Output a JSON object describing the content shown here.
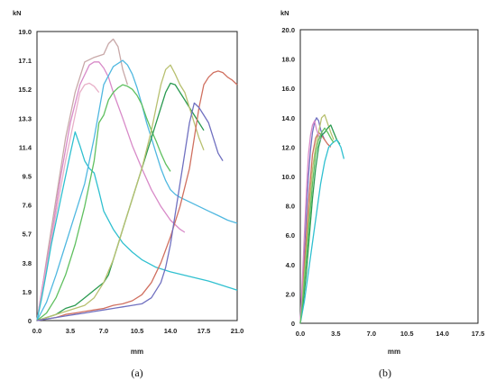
{
  "chart_data": [
    {
      "type": "line",
      "caption": "(a)",
      "xlabel": "mm",
      "ylabel": "kN",
      "xlim": [
        0,
        21.0
      ],
      "ylim": [
        0,
        19.0
      ],
      "xticks": [
        "0.0",
        "3.5",
        "7.0",
        "10.5",
        "14.0",
        "17.5",
        "21.0"
      ],
      "yticks": [
        "0",
        "1.9",
        "3.8",
        "5.7",
        "7.6",
        "9.5",
        "11.4",
        "13.3",
        "15.2",
        "17.1",
        "19.0"
      ],
      "grid": false,
      "series": [
        {
          "color": "#c8a8a8",
          "x": [
            0,
            0.4,
            1.0,
            2.0,
            3.0,
            4.0,
            5.0,
            6.0,
            7.0,
            7.5,
            8.0,
            8.5,
            9.0,
            9.5
          ],
          "y": [
            0,
            1.5,
            4.0,
            8.0,
            12.0,
            15.0,
            17.0,
            17.3,
            17.5,
            18.2,
            18.5,
            18.0,
            16.5,
            15.5
          ]
        },
        {
          "color": "#d88ac8",
          "x": [
            0,
            0.5,
            1.5,
            2.5,
            3.5,
            4.5,
            5.5,
            6.0,
            6.5,
            7.0,
            7.5,
            8.0,
            9.0,
            10.0,
            11.0,
            12.0,
            13.0,
            14.0,
            15.0,
            15.5
          ],
          "y": [
            0,
            2.0,
            5.5,
            9.5,
            13.0,
            15.5,
            16.8,
            17.0,
            17.0,
            16.6,
            16.0,
            15.0,
            13.3,
            11.5,
            10.0,
            8.6,
            7.5,
            6.6,
            6.0,
            5.8
          ]
        },
        {
          "color": "#e8b0c8",
          "x": [
            0,
            1.0,
            2.0,
            3.0,
            4.0,
            4.5,
            5.0,
            5.5,
            6.0,
            6.5
          ],
          "y": [
            0,
            3.5,
            7.0,
            10.5,
            13.5,
            15.0,
            15.5,
            15.6,
            15.4,
            15.0
          ]
        },
        {
          "color": "#30c0d0",
          "x": [
            0,
            0.5,
            1.0,
            1.5,
            2.0,
            2.5,
            3.0,
            3.5,
            4.0,
            4.5,
            5.0,
            5.5,
            6.0,
            6.5,
            7.0,
            8.0,
            9.0,
            10.0,
            11.0,
            12.5,
            14.0,
            16.0,
            18.0,
            19.5,
            21.0
          ],
          "y": [
            0,
            1.5,
            3.2,
            5.0,
            6.5,
            8.0,
            9.5,
            11.0,
            12.4,
            11.5,
            10.5,
            10.0,
            9.7,
            8.5,
            7.2,
            6.0,
            5.1,
            4.5,
            4.0,
            3.5,
            3.2,
            2.9,
            2.6,
            2.3,
            2.0
          ]
        },
        {
          "color": "#50b8e0",
          "x": [
            0,
            1.0,
            2.0,
            3.0,
            4.0,
            5.0,
            6.0,
            7.0,
            8.0,
            9.0,
            9.5,
            10.0,
            10.5,
            11.0,
            11.5,
            12.0,
            12.5,
            13.0,
            13.5,
            14.0,
            14.5,
            15.0,
            16.0,
            17.0,
            18.0,
            19.0,
            20.0,
            21.0
          ],
          "y": [
            0,
            1.2,
            3.0,
            5.0,
            7.0,
            9.0,
            12.0,
            15.5,
            16.7,
            17.1,
            16.8,
            16.2,
            15.3,
            14.2,
            13.0,
            12.0,
            11.0,
            10.0,
            9.2,
            8.6,
            8.3,
            8.1,
            7.8,
            7.5,
            7.2,
            6.9,
            6.6,
            6.4
          ]
        },
        {
          "color": "#60c060",
          "x": [
            0,
            1.0,
            2.0,
            3.0,
            4.0,
            5.0,
            6.0,
            6.5,
            7.0,
            7.5,
            8.0,
            8.5,
            9.0,
            9.5,
            10.0,
            10.5,
            11.0,
            11.5,
            12.0,
            12.5,
            13.0,
            13.5,
            14.0
          ],
          "y": [
            0,
            0.5,
            1.5,
            3.0,
            5.0,
            7.5,
            10.5,
            13.0,
            13.5,
            14.5,
            15.0,
            15.3,
            15.5,
            15.4,
            15.2,
            14.8,
            14.2,
            13.3,
            12.5,
            11.8,
            11.0,
            10.3,
            9.8
          ]
        },
        {
          "color": "#2a9a50",
          "x": [
            0,
            1.0,
            2.0,
            3.0,
            4.0,
            5.0,
            6.0,
            7.0,
            7.5,
            8.0,
            8.5,
            9.0,
            9.5,
            10.0,
            11.0,
            12.0,
            13.0,
            13.5,
            14.0,
            14.5,
            15.0,
            15.5,
            16.0,
            16.5,
            17.0,
            17.5
          ],
          "y": [
            0,
            0.2,
            0.4,
            0.8,
            1.0,
            1.5,
            2.0,
            2.5,
            3.0,
            4.0,
            5.0,
            6.0,
            7.0,
            8.0,
            10.0,
            12.0,
            14.0,
            15.0,
            15.6,
            15.5,
            15.0,
            14.5,
            14.0,
            13.5,
            13.0,
            12.5
          ]
        },
        {
          "color": "#b8c070",
          "x": [
            0,
            1.0,
            2.0,
            3.0,
            4.0,
            5.0,
            6.0,
            7.0,
            8.0,
            9.0,
            10.0,
            11.0,
            12.0,
            12.5,
            13.0,
            13.5,
            14.0,
            14.5,
            15.0,
            15.5,
            16.0,
            16.5,
            17.0,
            17.5
          ],
          "y": [
            0,
            0.2,
            0.4,
            0.6,
            0.8,
            1.0,
            1.5,
            2.5,
            4.0,
            6.0,
            8.0,
            10.0,
            12.5,
            14.0,
            15.5,
            16.5,
            16.8,
            16.2,
            15.5,
            15.0,
            14.0,
            13.0,
            12.0,
            11.2
          ]
        },
        {
          "color": "#d07060",
          "x": [
            0,
            1.0,
            2.0,
            3.0,
            4.0,
            5.0,
            6.0,
            7.0,
            8.0,
            9.0,
            10.0,
            11.0,
            12.0,
            13.0,
            14.0,
            15.0,
            16.0,
            16.5,
            17.0,
            17.5,
            18.0,
            18.5,
            19.0,
            19.5,
            20.0,
            20.5,
            21.0
          ],
          "y": [
            0,
            0.1,
            0.2,
            0.4,
            0.5,
            0.6,
            0.7,
            0.8,
            1.0,
            1.1,
            1.3,
            1.7,
            2.5,
            3.8,
            5.5,
            7.5,
            10.0,
            12.0,
            14.0,
            15.5,
            16.0,
            16.3,
            16.4,
            16.3,
            16.0,
            15.8,
            15.5
          ]
        },
        {
          "color": "#7070c0",
          "x": [
            0,
            1.0,
            2.0,
            3.0,
            4.0,
            5.0,
            6.0,
            7.0,
            8.0,
            9.0,
            10.0,
            11.0,
            12.0,
            13.0,
            13.5,
            14.0,
            14.5,
            15.0,
            15.5,
            16.0,
            16.5,
            17.0,
            17.5,
            18.0,
            18.5,
            19.0,
            19.5
          ],
          "y": [
            0,
            0.1,
            0.2,
            0.3,
            0.4,
            0.5,
            0.6,
            0.7,
            0.8,
            0.9,
            1.0,
            1.1,
            1.5,
            2.5,
            3.5,
            5.0,
            7.0,
            9.0,
            11.0,
            13.0,
            14.3,
            14.0,
            13.5,
            13.0,
            12.0,
            11.0,
            10.5
          ]
        }
      ]
    },
    {
      "type": "line",
      "caption": "(b)",
      "xlabel": "mm",
      "ylabel": "kN",
      "xlim": [
        0,
        17.5
      ],
      "ylim": [
        0,
        20.0
      ],
      "xticks": [
        "0.0",
        "3.5",
        "7.0",
        "10.5",
        "14.0",
        "17.5"
      ],
      "yticks": [
        "0",
        "2.0",
        "4.0",
        "6.0",
        "8.0",
        "10.0",
        "12.0",
        "14.0",
        "16.0",
        "18.0",
        "20.0"
      ],
      "grid": false,
      "series": [
        {
          "color": "#7070c0",
          "x": [
            0,
            0.2,
            0.4,
            0.6,
            0.8,
            1.0,
            1.2,
            1.4,
            1.6,
            1.8,
            2.0,
            2.2,
            2.4
          ],
          "y": [
            0,
            2.5,
            5.0,
            7.5,
            10.0,
            11.8,
            13.0,
            13.7,
            14.0,
            13.8,
            13.2,
            12.8,
            12.5
          ]
        },
        {
          "color": "#d07060",
          "x": [
            0,
            0.3,
            0.6,
            0.9,
            1.2,
            1.5,
            1.8,
            2.1,
            2.4,
            2.7,
            3.0
          ],
          "y": [
            0,
            3.0,
            6.0,
            9.0,
            11.5,
            12.6,
            13.0,
            12.8,
            12.5,
            12.2,
            12.0
          ]
        },
        {
          "color": "#b8c070",
          "x": [
            0,
            0.3,
            0.6,
            0.9,
            1.2,
            1.5,
            1.8,
            2.1,
            2.4,
            2.7,
            3.0,
            3.3
          ],
          "y": [
            0,
            2.5,
            5.0,
            8.0,
            10.5,
            12.0,
            13.0,
            14.0,
            14.2,
            13.6,
            13.0,
            12.5
          ]
        },
        {
          "color": "#2a9a50",
          "x": [
            0,
            0.3,
            0.6,
            0.9,
            1.2,
            1.5,
            1.8,
            2.1,
            2.4,
            2.7,
            3.0,
            3.3,
            3.6,
            3.9
          ],
          "y": [
            0,
            1.5,
            3.5,
            6.0,
            8.5,
            10.5,
            12.0,
            12.8,
            13.0,
            13.3,
            13.5,
            13.0,
            12.5,
            12.2
          ]
        },
        {
          "color": "#30c0d0",
          "x": [
            0,
            0.4,
            0.8,
            1.2,
            1.6,
            2.0,
            2.4,
            2.8,
            3.2,
            3.6,
            4.0,
            4.3
          ],
          "y": [
            0,
            1.5,
            3.5,
            5.5,
            7.5,
            9.5,
            11.0,
            12.0,
            12.3,
            12.5,
            12.0,
            11.2
          ]
        },
        {
          "color": "#d88ac8",
          "x": [
            0,
            0.2,
            0.4,
            0.6,
            0.8,
            1.0,
            1.2,
            1.4,
            1.6,
            1.8,
            2.0
          ],
          "y": [
            0,
            3.0,
            6.0,
            9.0,
            11.5,
            12.8,
            13.5,
            13.8,
            13.2,
            12.8,
            12.5
          ]
        },
        {
          "color": "#60c060",
          "x": [
            0,
            0.3,
            0.6,
            0.9,
            1.2,
            1.5,
            1.8,
            2.1,
            2.4,
            2.7,
            3.0,
            3.3
          ],
          "y": [
            0,
            2.0,
            4.5,
            7.0,
            9.5,
            11.5,
            12.5,
            13.0,
            13.3,
            13.0,
            12.6,
            12.3
          ]
        }
      ]
    }
  ]
}
